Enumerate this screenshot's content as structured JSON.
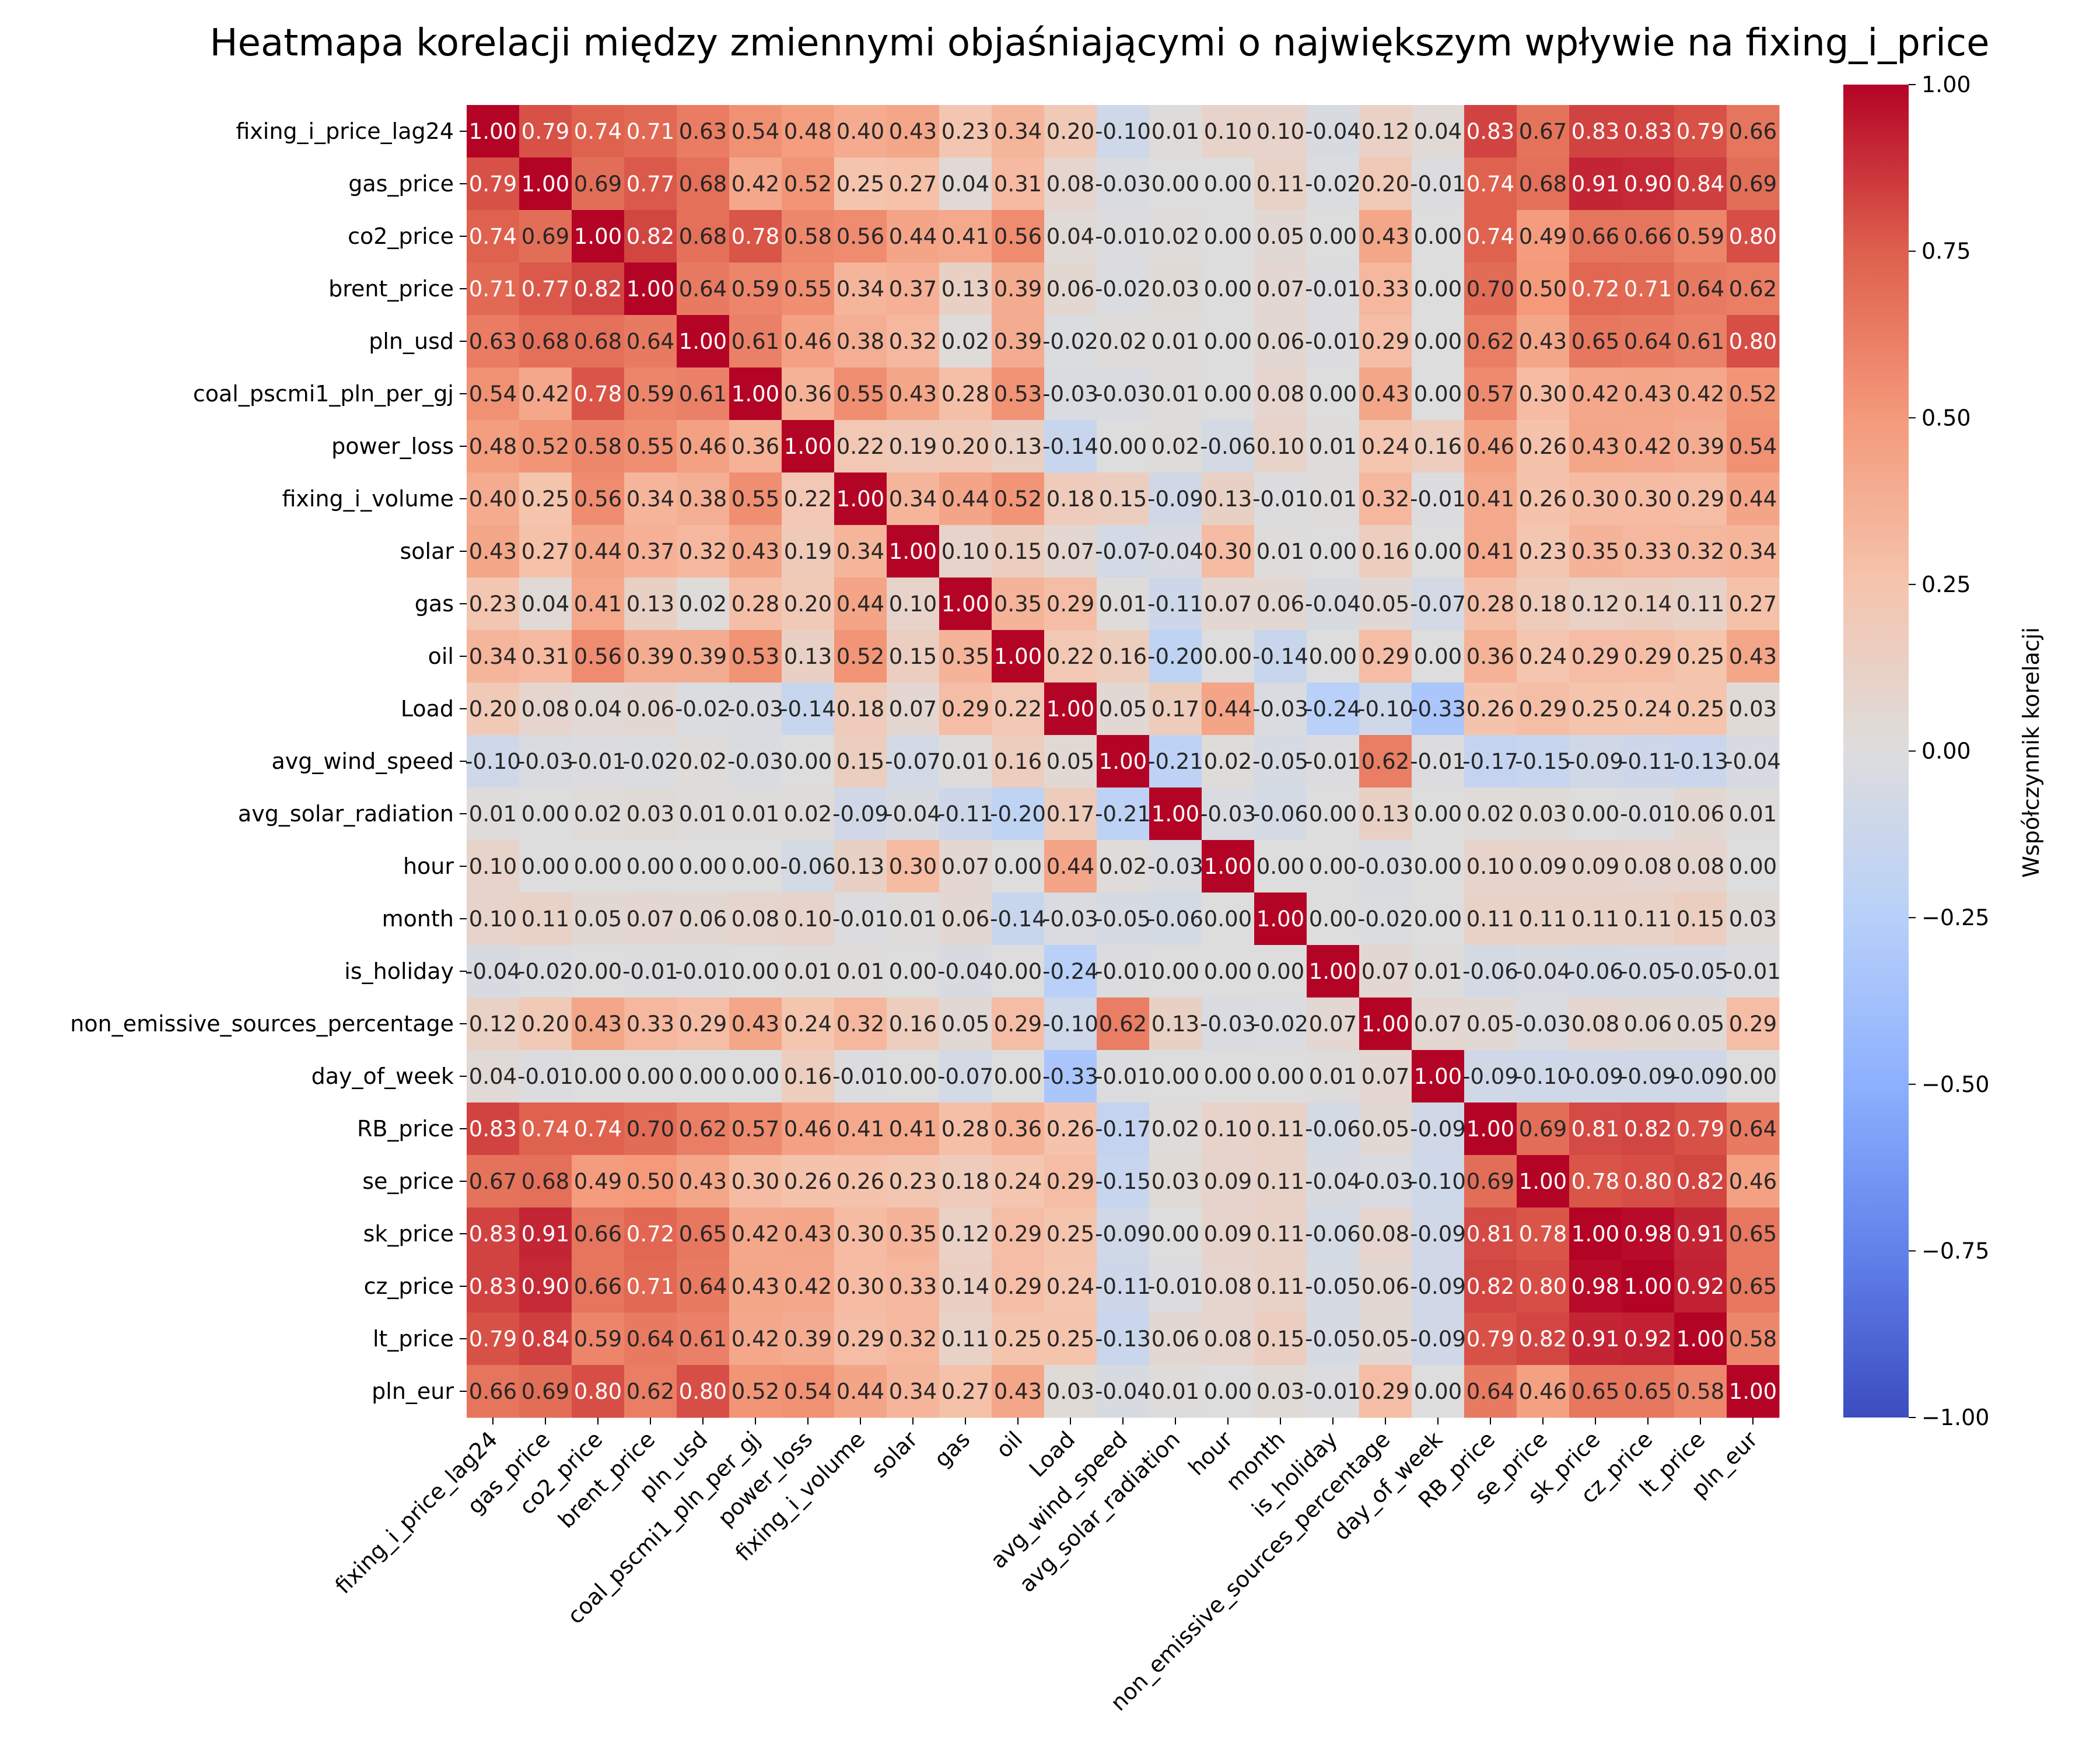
{
  "chart_data": {
    "type": "heatmap",
    "title": "Heatmapa korelacji między zmiennymi objaśniającymi o największym wpływie na fixing_i_price",
    "variables": [
      "fixing_i_price_lag24",
      "gas_price",
      "co2_price",
      "brent_price",
      "pln_usd",
      "coal_pscmi1_pln_per_gj",
      "power_loss",
      "fixing_i_volume",
      "solar",
      "gas",
      "oil",
      "Load",
      "avg_wind_speed",
      "avg_solar_radiation",
      "hour",
      "month",
      "is_holiday",
      "non_emissive_sources_percentage",
      "day_of_week",
      "RB_price",
      "se_price",
      "sk_price",
      "cz_price",
      "lt_price",
      "pln_eur"
    ],
    "matrix": [
      [
        1.0,
        0.79,
        0.74,
        0.71,
        0.63,
        0.54,
        0.48,
        0.4,
        0.43,
        0.23,
        0.34,
        0.2,
        -0.1,
        0.01,
        0.1,
        0.1,
        -0.04,
        0.12,
        0.04,
        0.83,
        0.67,
        0.83,
        0.83,
        0.79,
        0.66
      ],
      [
        0.79,
        1.0,
        0.69,
        0.77,
        0.68,
        0.42,
        0.52,
        0.25,
        0.27,
        0.04,
        0.31,
        0.08,
        -0.03,
        -0.0,
        0.0,
        0.11,
        -0.02,
        0.2,
        -0.01,
        0.74,
        0.68,
        0.91,
        0.9,
        0.84,
        0.69
      ],
      [
        0.74,
        0.69,
        1.0,
        0.82,
        0.68,
        0.78,
        0.58,
        0.56,
        0.44,
        0.41,
        0.56,
        0.04,
        -0.01,
        0.02,
        0.0,
        0.05,
        -0.0,
        0.43,
        0.0,
        0.74,
        0.49,
        0.66,
        0.66,
        0.59,
        0.8
      ],
      [
        0.71,
        0.77,
        0.82,
        1.0,
        0.64,
        0.59,
        0.55,
        0.34,
        0.37,
        0.13,
        0.39,
        0.06,
        -0.02,
        0.03,
        0.0,
        0.07,
        -0.01,
        0.33,
        0.0,
        0.7,
        0.5,
        0.72,
        0.71,
        0.64,
        0.62
      ],
      [
        0.63,
        0.68,
        0.68,
        0.64,
        1.0,
        0.61,
        0.46,
        0.38,
        0.32,
        0.02,
        0.39,
        -0.02,
        0.02,
        0.01,
        0.0,
        0.06,
        -0.01,
        0.29,
        0.0,
        0.62,
        0.43,
        0.65,
        0.64,
        0.61,
        0.8
      ],
      [
        0.54,
        0.42,
        0.78,
        0.59,
        0.61,
        1.0,
        0.36,
        0.55,
        0.43,
        0.28,
        0.53,
        -0.03,
        -0.03,
        0.01,
        0.0,
        0.08,
        -0.0,
        0.43,
        -0.0,
        0.57,
        0.3,
        0.42,
        0.43,
        0.42,
        0.52
      ],
      [
        0.48,
        0.52,
        0.58,
        0.55,
        0.46,
        0.36,
        1.0,
        0.22,
        0.19,
        0.2,
        0.13,
        -0.14,
        0.0,
        0.02,
        -0.06,
        0.1,
        0.01,
        0.24,
        0.16,
        0.46,
        0.26,
        0.43,
        0.42,
        0.39,
        0.54
      ],
      [
        0.4,
        0.25,
        0.56,
        0.34,
        0.38,
        0.55,
        0.22,
        1.0,
        0.34,
        0.44,
        0.52,
        0.18,
        0.15,
        -0.09,
        0.13,
        -0.01,
        0.01,
        0.32,
        -0.01,
        0.41,
        0.26,
        0.3,
        0.3,
        0.29,
        0.44
      ],
      [
        0.43,
        0.27,
        0.44,
        0.37,
        0.32,
        0.43,
        0.19,
        0.34,
        1.0,
        0.1,
        0.15,
        0.07,
        -0.07,
        -0.04,
        0.3,
        0.01,
        0.0,
        0.16,
        -0.0,
        0.41,
        0.23,
        0.35,
        0.33,
        0.32,
        0.34
      ],
      [
        0.23,
        0.04,
        0.41,
        0.13,
        0.02,
        0.28,
        0.2,
        0.44,
        0.1,
        1.0,
        0.35,
        0.29,
        0.01,
        -0.11,
        0.07,
        0.06,
        -0.04,
        0.05,
        -0.07,
        0.28,
        0.18,
        0.12,
        0.14,
        0.11,
        0.27
      ],
      [
        0.34,
        0.31,
        0.56,
        0.39,
        0.39,
        0.53,
        0.13,
        0.52,
        0.15,
        0.35,
        1.0,
        0.22,
        0.16,
        -0.2,
        0.0,
        -0.14,
        0.0,
        0.29,
        -0.0,
        0.36,
        0.24,
        0.29,
        0.29,
        0.25,
        0.43
      ],
      [
        0.2,
        0.08,
        0.04,
        0.06,
        -0.02,
        -0.03,
        -0.14,
        0.18,
        0.07,
        0.29,
        0.22,
        1.0,
        0.05,
        0.17,
        0.44,
        -0.03,
        -0.24,
        -0.1,
        -0.33,
        0.26,
        0.29,
        0.25,
        0.24,
        0.25,
        0.03
      ],
      [
        -0.1,
        -0.03,
        -0.01,
        -0.02,
        0.02,
        -0.03,
        0.0,
        0.15,
        -0.07,
        0.01,
        0.16,
        0.05,
        1.0,
        -0.21,
        0.02,
        -0.05,
        -0.01,
        0.62,
        -0.01,
        -0.17,
        -0.15,
        -0.09,
        -0.11,
        -0.13,
        -0.04
      ],
      [
        0.01,
        -0.0,
        0.02,
        0.03,
        0.01,
        0.01,
        0.02,
        -0.09,
        -0.04,
        -0.11,
        -0.2,
        0.17,
        -0.21,
        1.0,
        -0.03,
        -0.06,
        -0.0,
        0.13,
        0.0,
        0.02,
        0.03,
        -0.0,
        -0.01,
        0.06,
        0.01
      ],
      [
        0.1,
        0.0,
        0.0,
        0.0,
        0.0,
        0.0,
        -0.06,
        0.13,
        0.3,
        0.07,
        0.0,
        0.44,
        0.02,
        -0.03,
        1.0,
        0.0,
        -0.0,
        -0.03,
        0.0,
        0.1,
        0.09,
        0.09,
        0.08,
        0.08,
        0.0
      ],
      [
        0.1,
        0.11,
        0.05,
        0.07,
        0.06,
        0.08,
        0.1,
        -0.01,
        0.01,
        0.06,
        -0.14,
        -0.03,
        -0.05,
        -0.06,
        0.0,
        1.0,
        0.0,
        -0.02,
        0.0,
        0.11,
        0.11,
        0.11,
        0.11,
        0.15,
        0.03
      ],
      [
        -0.04,
        -0.02,
        -0.0,
        -0.01,
        -0.01,
        -0.0,
        0.01,
        0.01,
        0.0,
        -0.04,
        0.0,
        -0.24,
        -0.01,
        -0.0,
        -0.0,
        0.0,
        1.0,
        0.07,
        0.01,
        -0.06,
        -0.04,
        -0.06,
        -0.05,
        -0.05,
        -0.01
      ],
      [
        0.12,
        0.2,
        0.43,
        0.33,
        0.29,
        0.43,
        0.24,
        0.32,
        0.16,
        0.05,
        0.29,
        -0.1,
        0.62,
        0.13,
        -0.03,
        -0.02,
        0.07,
        1.0,
        0.07,
        0.05,
        -0.03,
        0.08,
        0.06,
        0.05,
        0.29
      ],
      [
        0.04,
        -0.01,
        0.0,
        0.0,
        0.0,
        -0.0,
        0.16,
        -0.01,
        -0.0,
        -0.07,
        -0.0,
        -0.33,
        -0.01,
        0.0,
        0.0,
        0.0,
        0.01,
        0.07,
        1.0,
        -0.09,
        -0.1,
        -0.09,
        -0.09,
        -0.09,
        0.0
      ],
      [
        0.83,
        0.74,
        0.74,
        0.7,
        0.62,
        0.57,
        0.46,
        0.41,
        0.41,
        0.28,
        0.36,
        0.26,
        -0.17,
        0.02,
        0.1,
        0.11,
        -0.06,
        0.05,
        -0.09,
        1.0,
        0.69,
        0.81,
        0.82,
        0.79,
        0.64
      ],
      [
        0.67,
        0.68,
        0.49,
        0.5,
        0.43,
        0.3,
        0.26,
        0.26,
        0.23,
        0.18,
        0.24,
        0.29,
        -0.15,
        0.03,
        0.09,
        0.11,
        -0.04,
        -0.03,
        -0.1,
        0.69,
        1.0,
        0.78,
        0.8,
        0.82,
        0.46
      ],
      [
        0.83,
        0.91,
        0.66,
        0.72,
        0.65,
        0.42,
        0.43,
        0.3,
        0.35,
        0.12,
        0.29,
        0.25,
        -0.09,
        -0.0,
        0.09,
        0.11,
        -0.06,
        0.08,
        -0.09,
        0.81,
        0.78,
        1.0,
        0.98,
        0.91,
        0.65
      ],
      [
        0.83,
        0.9,
        0.66,
        0.71,
        0.64,
        0.43,
        0.42,
        0.3,
        0.33,
        0.14,
        0.29,
        0.24,
        -0.11,
        -0.01,
        0.08,
        0.11,
        -0.05,
        0.06,
        -0.09,
        0.82,
        0.8,
        0.98,
        1.0,
        0.92,
        0.65
      ],
      [
        0.79,
        0.84,
        0.59,
        0.64,
        0.61,
        0.42,
        0.39,
        0.29,
        0.32,
        0.11,
        0.25,
        0.25,
        -0.13,
        0.06,
        0.08,
        0.15,
        -0.05,
        0.05,
        -0.09,
        0.79,
        0.82,
        0.91,
        0.92,
        1.0,
        0.58
      ],
      [
        0.66,
        0.69,
        0.8,
        0.62,
        0.8,
        0.52,
        0.54,
        0.44,
        0.34,
        0.27,
        0.43,
        0.03,
        -0.04,
        0.01,
        0.0,
        0.03,
        -0.01,
        0.29,
        0.0,
        0.64,
        0.46,
        0.65,
        0.65,
        0.58,
        1.0
      ]
    ],
    "value_range": [
      -1.0,
      1.0
    ],
    "colormap": "coolwarm",
    "colorbar": {
      "label": "Współczynnik korelacji",
      "ticks": [
        "1.00",
        "0.75",
        "0.50",
        "0.25",
        "0.00",
        "−0.25",
        "−0.50",
        "−0.75",
        "−1.00"
      ]
    },
    "grid": false,
    "legend_placement": "right"
  }
}
